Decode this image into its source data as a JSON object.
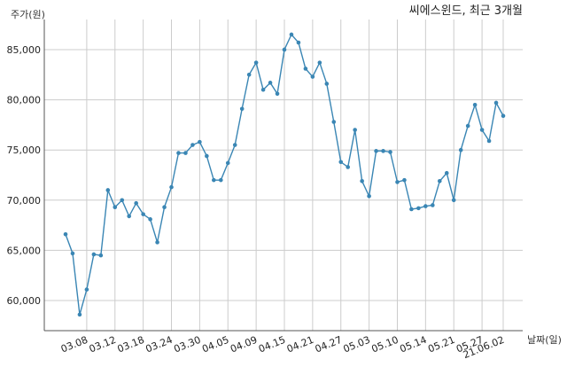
{
  "chart_data": {
    "type": "line",
    "title": "씨에스윈드, 최근 3개월",
    "ylabel": "주가(원)",
    "xlabel": "날짜(일)",
    "ylim": [
      57000,
      88000
    ],
    "yticks": [
      60000,
      65000,
      70000,
      75000,
      80000,
      85000
    ],
    "ytick_labels": [
      "60,000",
      "65,000",
      "70,000",
      "75,000",
      "80,000",
      "85,000"
    ],
    "xticks": [
      "03.08",
      "03.12",
      "03.18",
      "03.24",
      "03.30",
      "04.05",
      "04.09",
      "04.15",
      "04.21",
      "04.27",
      "05.03",
      "05.10",
      "05.14",
      "05.21",
      "05.27",
      "21.06.02"
    ],
    "grid": true,
    "color": "#3a86b4",
    "series": [
      {
        "values": [
          66600,
          64700,
          58600,
          61100,
          64600,
          64500,
          71000,
          69300,
          70000,
          68400,
          69700,
          68600,
          68100,
          65800,
          69300,
          71300,
          74700,
          74700,
          75500,
          75800,
          74400,
          72000,
          72000,
          73700,
          75500,
          79100,
          82500,
          83700,
          81000,
          81700,
          80600,
          85000,
          86500,
          85700,
          83100,
          82300,
          83700,
          81600,
          77800,
          73800,
          73300,
          77000,
          71900,
          70400,
          74900,
          74900,
          74800,
          71800,
          72000,
          69100,
          69200,
          69400,
          69500,
          71900,
          72700,
          70000,
          75000,
          77400,
          79500,
          77000,
          75900,
          79700,
          78400
        ]
      }
    ]
  }
}
